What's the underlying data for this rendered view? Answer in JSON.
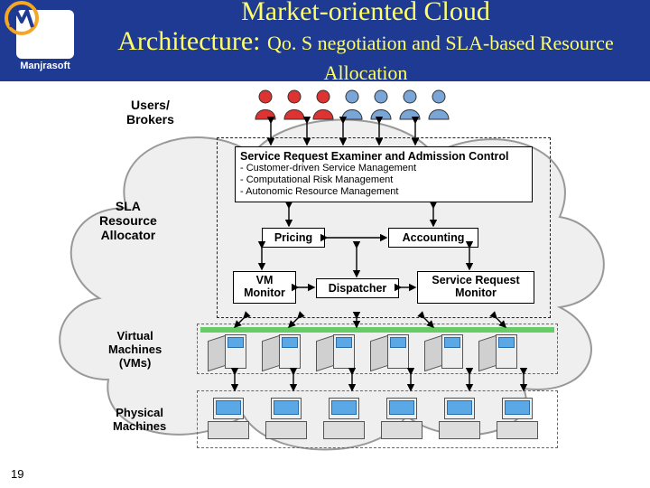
{
  "header": {
    "title_line1": "Market-oriented Cloud",
    "title_line2": "Architecture:",
    "subtitle": "Qo. S negotiation and SLA-based Resource Allocation",
    "logo_name": "Manjrasoft",
    "header_bg": "#1f3a93",
    "title_color": "#ffff66"
  },
  "slide_number": "19",
  "labels": {
    "users": "Users/\nBrokers",
    "sla": "SLA\nResource\nAllocator",
    "vms": "Virtual\nMachines\n(VMs)",
    "pms": "Physical\nMachines"
  },
  "boxes": {
    "examiner": {
      "title": "Service Request Examiner and Admission Control",
      "lines": [
        "- Customer-driven Service Management",
        "- Computational Risk Management",
        "- Autonomic Resource Management"
      ]
    },
    "pricing": "Pricing",
    "accounting": "Accounting",
    "vmmon": "VM\nMonitor",
    "dispatcher": "Dispatcher",
    "reqmon": "Service Request\nMonitor"
  },
  "users": {
    "count": 7,
    "red_count": 3,
    "red_color": "#d33",
    "blue_color": "#7aa5d6"
  },
  "vms": {
    "count": 6,
    "bar_color": "#66cc66"
  },
  "pms": {
    "count": 6
  },
  "style": {
    "font_label": 14,
    "font_box": 12,
    "cloud_fill": "#efefef",
    "cloud_stroke": "#999"
  }
}
